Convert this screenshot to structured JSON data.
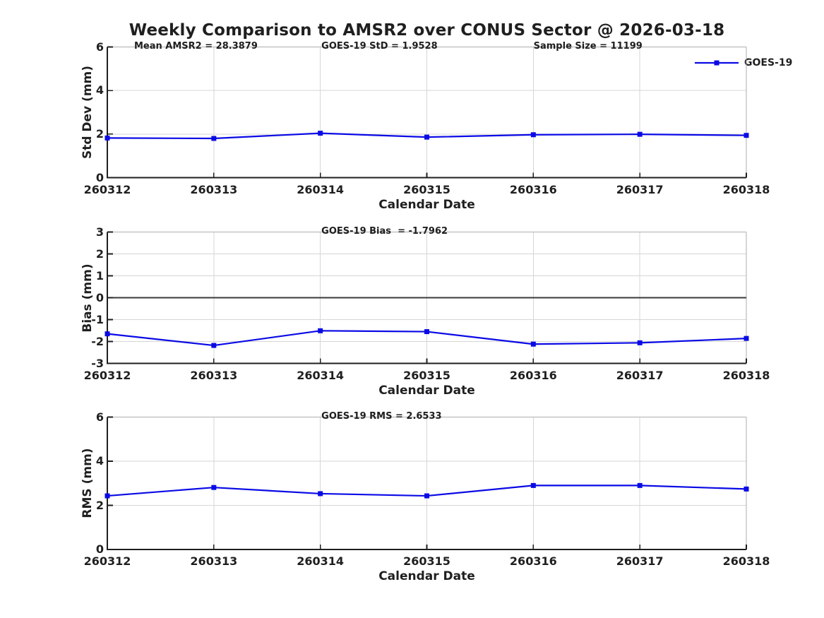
{
  "page": {
    "title": "Weekly Comparison to AMSR2 over CONUS Sector @ 2026-03-18"
  },
  "legend": {
    "label": "GOES-19",
    "position": "top-right"
  },
  "style": {
    "series_color": "#0a0ae6",
    "zero_line_color": "#3a3a3a",
    "axis_color": "#1f1f1f",
    "box_color": "#aeaeae",
    "grid_color": "#d6d6d6",
    "text_color": "#1f1f1f"
  },
  "chart_data": [
    {
      "id": "stddev",
      "type": "line",
      "series_name": "GOES-19",
      "categories": [
        "260312",
        "260313",
        "260314",
        "260315",
        "260316",
        "260317",
        "260318"
      ],
      "values": [
        1.82,
        1.8,
        2.04,
        1.86,
        1.97,
        1.99,
        1.94
      ],
      "xlabel": "Calendar Date",
      "ylabel": "Std Dev (mm)",
      "ylim": [
        0,
        6
      ],
      "yticks": [
        0,
        2,
        4,
        6
      ],
      "grid": true,
      "zero_line": false,
      "marker": "square",
      "annotations": [
        {
          "text": "Mean AMSR2 = 28.3879",
          "xfrac": 0.042
        },
        {
          "text": "GOES-19 StD = 1.9528",
          "xfrac": 0.335
        },
        {
          "text": "Sample Size = 11199",
          "xfrac": 0.667
        }
      ]
    },
    {
      "id": "bias",
      "type": "line",
      "series_name": "GOES-19",
      "categories": [
        "260312",
        "260313",
        "260314",
        "260315",
        "260316",
        "260317",
        "260318"
      ],
      "values": [
        -1.65,
        -2.18,
        -1.51,
        -1.55,
        -2.12,
        -2.06,
        -1.86
      ],
      "xlabel": "Calendar Date",
      "ylabel": "Bias (mm)",
      "ylim": [
        -3,
        3
      ],
      "yticks": [
        -3,
        -2,
        -1,
        0,
        1,
        2,
        3
      ],
      "grid": true,
      "zero_line": true,
      "marker": "square",
      "annotations": [
        {
          "text": "GOES-19 Bias  = -1.7962",
          "xfrac": 0.335
        }
      ]
    },
    {
      "id": "rms",
      "type": "line",
      "series_name": "GOES-19",
      "categories": [
        "260312",
        "260313",
        "260314",
        "260315",
        "260316",
        "260317",
        "260318"
      ],
      "values": [
        2.43,
        2.81,
        2.53,
        2.43,
        2.9,
        2.9,
        2.74
      ],
      "xlabel": "Calendar Date",
      "ylabel": "RMS (mm)",
      "ylim": [
        0,
        6
      ],
      "yticks": [
        0,
        2,
        4,
        6
      ],
      "grid": true,
      "zero_line": false,
      "marker": "square",
      "annotations": [
        {
          "text": "GOES-19 RMS = 2.6533",
          "xfrac": 0.335
        }
      ]
    }
  ]
}
